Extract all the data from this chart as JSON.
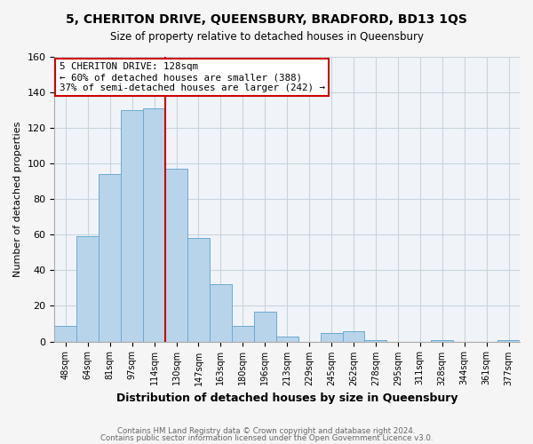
{
  "title": "5, CHERITON DRIVE, QUEENSBURY, BRADFORD, BD13 1QS",
  "subtitle": "Size of property relative to detached houses in Queensbury",
  "xlabel": "Distribution of detached houses by size in Queensbury",
  "ylabel": "Number of detached properties",
  "bar_labels": [
    "48sqm",
    "64sqm",
    "81sqm",
    "97sqm",
    "114sqm",
    "130sqm",
    "147sqm",
    "163sqm",
    "180sqm",
    "196sqm",
    "213sqm",
    "229sqm",
    "245sqm",
    "262sqm",
    "278sqm",
    "295sqm",
    "311sqm",
    "328sqm",
    "344sqm",
    "361sqm",
    "377sqm"
  ],
  "bar_heights": [
    9,
    59,
    94,
    130,
    131,
    97,
    58,
    32,
    9,
    17,
    3,
    0,
    5,
    6,
    1,
    0,
    0,
    1,
    0,
    0,
    1
  ],
  "bar_color": "#b8d4ea",
  "bar_edge_color": "#6aaad4",
  "vline_color": "#cc0000",
  "annotation_title": "5 CHERITON DRIVE: 128sqm",
  "annotation_line1": "← 60% of detached houses are smaller (388)",
  "annotation_line2": "37% of semi-detached houses are larger (242) →",
  "annotation_box_color": "#ffffff",
  "annotation_box_edge": "#cc0000",
  "ylim": [
    0,
    160
  ],
  "yticks": [
    0,
    20,
    40,
    60,
    80,
    100,
    120,
    140,
    160
  ],
  "footer1": "Contains HM Land Registry data © Crown copyright and database right 2024.",
  "footer2": "Contains public sector information licensed under the Open Government Licence v3.0.",
  "bg_color": "#f5f5f5",
  "plot_bg_color": "#f0f4f8"
}
